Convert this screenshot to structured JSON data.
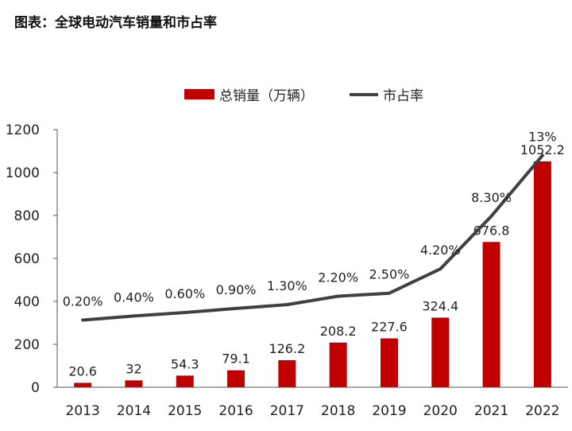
{
  "chart_data": {
    "type": "bar",
    "title": "图表：全球电动汽车销量和市占率",
    "categories": [
      "2013",
      "2014",
      "2015",
      "2016",
      "2017",
      "2018",
      "2019",
      "2020",
      "2021",
      "2022"
    ],
    "series": [
      {
        "name": "总销量（万辆）",
        "kind": "bar",
        "color": "#C00000",
        "values": [
          20.6,
          32,
          54.3,
          79.1,
          126.2,
          208.2,
          227.6,
          324.4,
          676.8,
          1052.2
        ],
        "labels": [
          "20.6",
          "32",
          "54.3",
          "79.1",
          "126.2",
          "208.2",
          "227.6",
          "324.4",
          "676.8",
          "1052.2"
        ]
      },
      {
        "name": "市占率",
        "kind": "line",
        "color": "#404040",
        "values": [
          0.2,
          0.4,
          0.6,
          0.9,
          1.3,
          2.2,
          2.5,
          4.2,
          8.3,
          13
        ],
        "labels": [
          "0.20%",
          "0.40%",
          "0.60%",
          "0.90%",
          "1.30%",
          "2.20%",
          "2.50%",
          "4.20%",
          "8.30%",
          "13%"
        ]
      }
    ],
    "ylim": [
      0,
      1200
    ],
    "yticks": [
      "0",
      "200",
      "400",
      "600",
      "800",
      "1000",
      "1200"
    ],
    "grid": false,
    "legend": "top"
  }
}
